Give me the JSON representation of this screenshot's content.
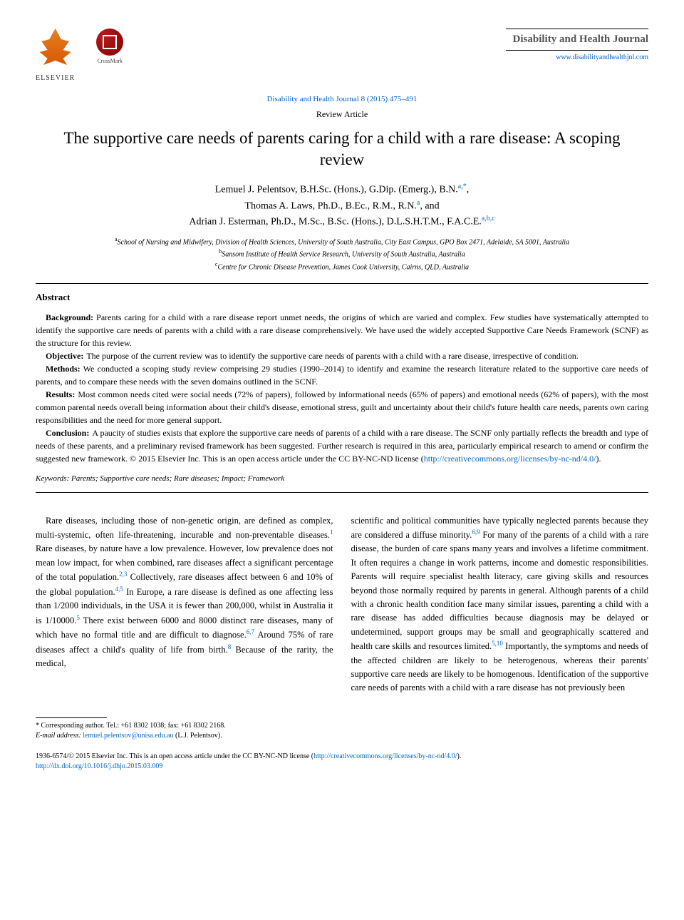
{
  "header": {
    "publisher_label": "ELSEVIER",
    "crossmark_label": "CrossMark",
    "citation": "Disability and Health Journal 8 (2015) 475–491",
    "journal_name": "Disability and Health Journal",
    "journal_url": "www.disabilityandhealthjnl.com"
  },
  "article": {
    "type": "Review Article",
    "title": "The supportive care needs of parents caring for a child with a rare disease: A scoping review",
    "authors_line1": "Lemuel J. Pelentsov, B.H.Sc. (Hons.), G.Dip. (Emerg.), B.N.",
    "authors_sup1": "a,*",
    "authors_line1_end": ",",
    "authors_line2": "Thomas A. Laws, Ph.D., B.Ec., R.M., R.N.",
    "authors_sup2": "a",
    "authors_line2_end": ", and",
    "authors_line3": "Adrian J. Esterman, Ph.D., M.Sc., B.Sc. (Hons.), D.L.S.H.T.M., F.A.C.E.",
    "authors_sup3": "a,b,c",
    "affiliations": {
      "a_sup": "a",
      "a": "School of Nursing and Midwifery, Division of Health Sciences, University of South Australia, City East Campus, GPO Box 2471, Adelaide, SA 5001, Australia",
      "b_sup": "b",
      "b": "Sansom Institute of Health Service Research, University of South Australia, Australia",
      "c_sup": "c",
      "c": "Centre for Chronic Disease Prevention, James Cook University, Cairns, QLD, Australia"
    }
  },
  "abstract": {
    "heading": "Abstract",
    "background_label": "Background:",
    "background": "Parents caring for a child with a rare disease report unmet needs, the origins of which are varied and complex. Few studies have systematically attempted to identify the supportive care needs of parents with a child with a rare disease comprehensively. We have used the widely accepted Supportive Care Needs Framework (SCNF) as the structure for this review.",
    "objective_label": "Objective:",
    "objective": "The purpose of the current review was to identify the supportive care needs of parents with a child with a rare disease, irrespective of condition.",
    "methods_label": "Methods:",
    "methods": "We conducted a scoping study review comprising 29 studies (1990–2014) to identify and examine the research literature related to the supportive care needs of parents, and to compare these needs with the seven domains outlined in the SCNF.",
    "results_label": "Results:",
    "results": "Most common needs cited were social needs (72% of papers), followed by informational needs (65% of papers) and emotional needs (62% of papers), with the most common parental needs overall being information about their child's disease, emotional stress, guilt and uncertainty about their child's future health care needs, parents own caring responsibilities and the need for more general support.",
    "conclusion_label": "Conclusion:",
    "conclusion": "A paucity of studies exists that explore the supportive care needs of parents of a child with a rare disease. The SCNF only partially reflects the breadth and type of needs of these parents, and a preliminary revised framework has been suggested. Further research is required in this area, particularly empirical research to amend or confirm the suggested new framework.    © 2015 Elsevier Inc. This is an open access article under the CC BY-NC-ND license (",
    "license_url": "http://creativecommons.org/licenses/by-nc-nd/4.0/",
    "license_close": ").",
    "keywords_label": "Keywords:",
    "keywords": " Parents; Supportive care needs; Rare diseases; Impact; Framework"
  },
  "body": {
    "col1_p1a": "Rare diseases, including those of non-genetic origin, are defined as complex, multi-systemic, often life-threatening, incurable and non-preventable diseases.",
    "col1_c1": "1",
    "col1_p1b": " Rare diseases, by nature have a low prevalence. However, low prevalence does not mean low impact, for when combined, rare diseases affect a significant percentage of the total population.",
    "col1_c2": "2,3",
    "col1_p1c": " Collectively, rare diseases affect between 6 and 10% of the global population.",
    "col1_c3": "4,5",
    "col1_p1d": " In Europe, a rare disease is defined as one affecting less than 1/2000 individuals, in the USA it is fewer than 200,000, whilst in Australia it is 1/10000.",
    "col1_c4": "5",
    "col1_p1e": " There exist between 6000 and 8000 distinct rare diseases, many of which have no formal title and are difficult to diagnose.",
    "col1_c5": "6,7",
    "col1_p1f": " Around 75% of rare diseases affect a child's quality of life from birth.",
    "col1_c6": "8",
    "col1_p1g": " Because of the rarity, the medical,",
    "col2_p1a": "scientific and political communities have typically neglected parents because they are considered a diffuse minority.",
    "col2_c1": "6,9",
    "col2_p1b": " For many of the parents of a child with a rare disease, the burden of care spans many years and involves a lifetime commitment. It often requires a change in work patterns, income and domestic responsibilities. Parents will require specialist health literacy, care giving skills and resources beyond those normally required by parents in general. Although parents of a child with a chronic health condition face many similar issues, parenting a child with a rare disease has added difficulties because diagnosis may be delayed or undetermined, support groups may be small and geographically scattered and health care skills and resources limited.",
    "col2_c2": "5,10",
    "col2_p1c": " Importantly, the symptoms and needs of the affected children are likely to be heterogenous, whereas their parents' supportive care needs are likely to be homogenous. Identification of the supportive care needs of parents with a child with a rare disease has not previously been"
  },
  "footnotes": {
    "corr": "* Corresponding author. Tel.: +61 8302 1038; fax: +61 8302 2168.",
    "email_label": "E-mail address:",
    "email": "lemuel.pelentsov@unisa.edu.au",
    "email_suffix": " (L.J. Pelentsov)."
  },
  "footer": {
    "line1": "1936-6574/© 2015 Elsevier Inc. This is an open access article under the CC BY-NC-ND license (",
    "license_url": "http://creativecommons.org/licenses/by-nc-nd/4.0/",
    "line1_close": ").",
    "doi": "http://dx.doi.org/10.1016/j.dhjo.2015.03.009"
  },
  "colors": {
    "link": "#0066cc",
    "text": "#000000",
    "background": "#ffffff"
  }
}
